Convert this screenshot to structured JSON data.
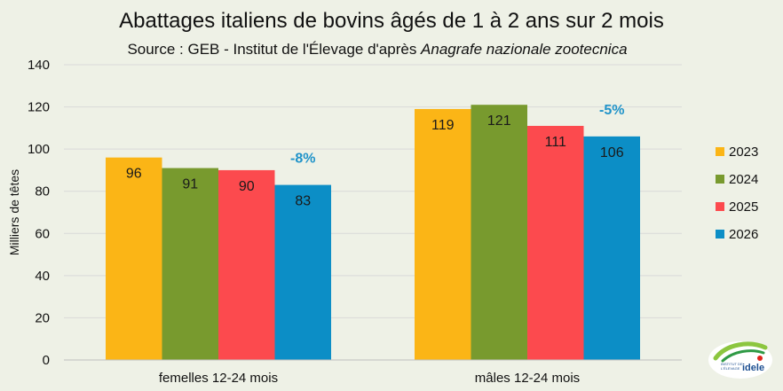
{
  "title": "Abattages italiens de bovins âgés de 1 à 2 ans sur 2 mois",
  "subtitle_prefix": "Source : GEB - Institut de l'Élevage d'après ",
  "subtitle_italic": "Anagrafe nazionale zootecnica",
  "logo": {
    "line1": "INSTITUT DE",
    "line2": "L'ÉLEVAGE",
    "brand": "idele"
  },
  "chart_data": {
    "type": "bar",
    "title": "Abattages italiens de bovins âgés de 1 à 2 ans sur 2 mois",
    "xlabel": "",
    "ylabel": "Milliers de têtes",
    "ylim": [
      0,
      140
    ],
    "yticks": [
      0,
      20,
      40,
      60,
      80,
      100,
      120,
      140
    ],
    "grid": true,
    "legend_position": "right",
    "categories": [
      "femelles 12-24 mois",
      "mâles 12-24 mois"
    ],
    "series": [
      {
        "name": "2023",
        "color": "#fbb516",
        "values": [
          96,
          119
        ],
        "labels": [
          "96",
          "119"
        ]
      },
      {
        "name": "2024",
        "color": "#789a2e",
        "values": [
          91,
          121
        ],
        "labels": [
          "91",
          "121"
        ]
      },
      {
        "name": "2025",
        "color": "#fc4a4e",
        "values": [
          90,
          111
        ],
        "labels": [
          "90",
          "111"
        ]
      },
      {
        "name": "2026",
        "color": "#0c8ec6",
        "values": [
          83,
          106
        ],
        "labels": [
          "83",
          "106"
        ]
      }
    ],
    "annotations": [
      {
        "category": "femelles 12-24 mois",
        "text": "-8%",
        "color": "#1f93c9"
      },
      {
        "category": "mâles 12-24 mois",
        "text": "-5%",
        "color": "#1f93c9"
      }
    ]
  }
}
